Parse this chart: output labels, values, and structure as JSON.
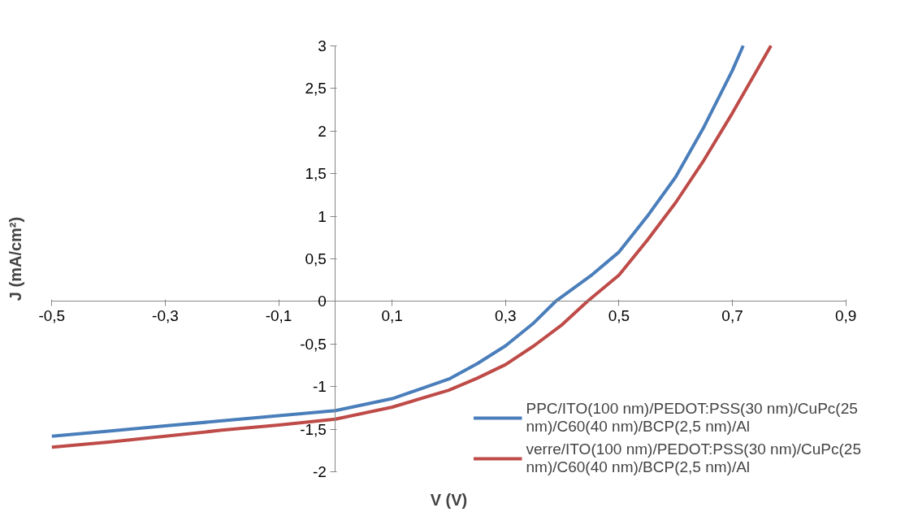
{
  "chart_data": {
    "type": "line",
    "xlabel": "V (V)",
    "ylabel": "J (mA/cm²)",
    "xlim": [
      -0.5,
      0.9
    ],
    "ylim": [
      -2,
      3
    ],
    "xticks": [
      {
        "value": -0.5,
        "label": "-0,5"
      },
      {
        "value": -0.3,
        "label": "-0,3"
      },
      {
        "value": -0.1,
        "label": "-0,1"
      },
      {
        "value": 0.1,
        "label": "0,1"
      },
      {
        "value": 0.3,
        "label": "0,3"
      },
      {
        "value": 0.5,
        "label": "0,5"
      },
      {
        "value": 0.7,
        "label": "0,7"
      },
      {
        "value": 0.9,
        "label": "0,9"
      }
    ],
    "yticks": [
      {
        "value": -2,
        "label": "-2"
      },
      {
        "value": -1.5,
        "label": "-1,5"
      },
      {
        "value": -1,
        "label": "-1"
      },
      {
        "value": -0.5,
        "label": "-0,5"
      },
      {
        "value": 0,
        "label": "0"
      },
      {
        "value": 0.5,
        "label": "0,5"
      },
      {
        "value": 1,
        "label": "1"
      },
      {
        "value": 1.5,
        "label": "1,5"
      },
      {
        "value": 2,
        "label": "2"
      },
      {
        "value": 2.5,
        "label": "2,5"
      },
      {
        "value": 3,
        "label": "3"
      }
    ],
    "grid": false,
    "legend": "bottom right",
    "marker": "none",
    "line_style": "solid",
    "series": [
      {
        "name": "PPC/ITO(100 nm)/PEDOT:PSS(30 nm)/CuPc(25 nm)/C60(40 nm)/BCP(2,5 nm)/Al",
        "color": "#4a7ebb",
        "x": [
          -0.5,
          -0.4,
          -0.3,
          -0.2,
          -0.1,
          0,
          0.1,
          0.2,
          0.25,
          0.3,
          0.35,
          0.388,
          0.45,
          0.5,
          0.55,
          0.6,
          0.65,
          0.7,
          0.719
        ],
        "values": [
          -1.58,
          -1.52,
          -1.46,
          -1.4,
          -1.34,
          -1.28,
          -1.14,
          -0.91,
          -0.73,
          -0.52,
          -0.25,
          0,
          0.3,
          0.58,
          1.0,
          1.46,
          2.05,
          2.71,
          3
        ]
      },
      {
        "name": "verre/ITO(100 nm)/PEDOT:PSS(30 nm)/CuPc(25 nm)/C60(40 nm)/BCP(2,5 nm)/Al",
        "color": "#be4b48",
        "x": [
          -0.5,
          -0.4,
          -0.3,
          -0.2,
          -0.1,
          0,
          0.1,
          0.2,
          0.25,
          0.3,
          0.35,
          0.4,
          0.444,
          0.5,
          0.55,
          0.6,
          0.65,
          0.7,
          0.768
        ],
        "values": [
          -1.71,
          -1.65,
          -1.58,
          -1.51,
          -1.45,
          -1.38,
          -1.24,
          -1.04,
          -0.9,
          -0.74,
          -0.52,
          -0.27,
          0,
          0.31,
          0.72,
          1.16,
          1.66,
          2.21,
          3
        ]
      }
    ]
  }
}
